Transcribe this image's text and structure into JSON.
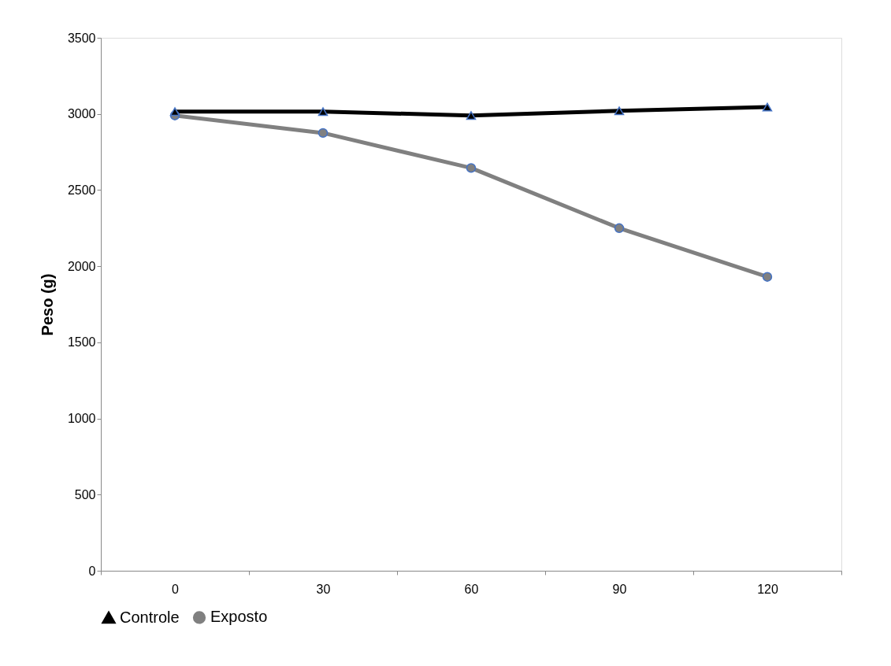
{
  "chart_data": {
    "type": "line",
    "ylabel": "Peso (g)",
    "categories": [
      "0",
      "30",
      "60",
      "90",
      "120"
    ],
    "series": [
      {
        "name": "Controle",
        "color": "#000000",
        "marker": "triangle",
        "values": [
          3015,
          3015,
          2990,
          3020,
          3045
        ]
      },
      {
        "name": "Exposto",
        "color": "#808080",
        "marker": "circle",
        "values": [
          2990,
          2875,
          2645,
          2250,
          1930
        ]
      }
    ],
    "ylim": [
      0,
      3500
    ],
    "yticks": [
      0,
      500,
      1000,
      1500,
      2000,
      2500,
      3000,
      3500
    ],
    "grid": false,
    "legend": "bottom"
  }
}
